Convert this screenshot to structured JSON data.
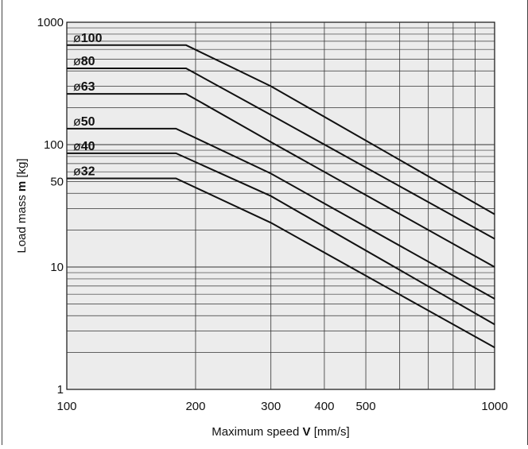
{
  "chart_data": {
    "type": "line",
    "x_scale": "log",
    "y_scale": "log",
    "xlim": [
      100,
      1000
    ],
    "ylim": [
      1,
      1000
    ],
    "grid": true,
    "xlabel_parts": [
      {
        "text": "Maximum speed ",
        "bold": false
      },
      {
        "text": "V",
        "bold": true
      },
      {
        "text": " [mm/s]",
        "bold": false
      }
    ],
    "ylabel_parts": [
      {
        "text": "Load mass ",
        "bold": false
      },
      {
        "text": "m",
        "bold": true
      },
      {
        "text": " [kg]",
        "bold": false
      }
    ],
    "x_tick_labels": [
      {
        "value": 100,
        "label": "100"
      },
      {
        "value": 200,
        "label": "200"
      },
      {
        "value": 300,
        "label": "300"
      },
      {
        "value": 400,
        "label": "400"
      },
      {
        "value": 500,
        "label": "500"
      },
      {
        "value": 1000,
        "label": "1000"
      }
    ],
    "y_tick_labels": [
      {
        "value": 1,
        "label": "1"
      },
      {
        "value": 10,
        "label": "10"
      },
      {
        "value": 50,
        "label": "50"
      },
      {
        "value": 100,
        "label": "100"
      },
      {
        "value": 1000,
        "label": "1000"
      }
    ],
    "series": [
      {
        "symbol": "ø",
        "name": "100",
        "points": [
          [
            100,
            650
          ],
          [
            190,
            650
          ],
          [
            300,
            300
          ],
          [
            1000,
            27
          ]
        ]
      },
      {
        "symbol": "ø",
        "name": "80",
        "points": [
          [
            100,
            420
          ],
          [
            190,
            420
          ],
          [
            300,
            175
          ],
          [
            1000,
            17
          ]
        ]
      },
      {
        "symbol": "ø",
        "name": "63",
        "points": [
          [
            100,
            260
          ],
          [
            190,
            260
          ],
          [
            300,
            105
          ],
          [
            1000,
            10
          ]
        ]
      },
      {
        "symbol": "ø",
        "name": "50",
        "points": [
          [
            100,
            135
          ],
          [
            180,
            135
          ],
          [
            300,
            58
          ],
          [
            1000,
            5.5
          ]
        ]
      },
      {
        "symbol": "ø",
        "name": "40",
        "points": [
          [
            100,
            85
          ],
          [
            180,
            85
          ],
          [
            300,
            38
          ],
          [
            1000,
            3.4
          ]
        ]
      },
      {
        "symbol": "ø",
        "name": "32",
        "points": [
          [
            100,
            53
          ],
          [
            180,
            53
          ],
          [
            300,
            23
          ],
          [
            1000,
            2.2
          ]
        ]
      }
    ],
    "colors": {
      "line": "#111111",
      "plot_bg": "#ececec",
      "grid": "#333333"
    }
  }
}
